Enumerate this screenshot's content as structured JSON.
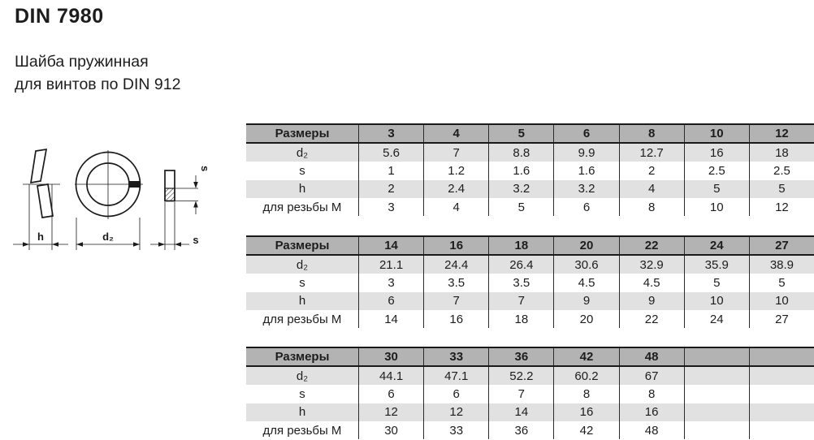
{
  "page": {
    "title": "DIN 7980",
    "subtitle_line1": "Шайба пружинная",
    "subtitle_line2": "для винтов по DIN 912"
  },
  "drawing": {
    "description": "spring lock washer technical views: side view, front view, cross-section",
    "labels": {
      "h": "h",
      "d2": "d₂",
      "s_thickness": "s",
      "s_width": "s"
    }
  },
  "colors": {
    "table_header_bg": "#b3b3b3",
    "table_alt_row_bg": "#e1e1e1",
    "table_plain_row_bg": "#ffffff",
    "line": "#1a1a1a",
    "text": "#1d1d1d"
  },
  "tables": [
    {
      "header": [
        "Размеры",
        "3",
        "4",
        "5",
        "6",
        "8",
        "10",
        "12"
      ],
      "rows": [
        {
          "label": "d₂",
          "values": [
            "5.6",
            "7",
            "8.8",
            "9.9",
            "12.7",
            "16",
            "18"
          ]
        },
        {
          "label": "s",
          "values": [
            "1",
            "1.2",
            "1.6",
            "1.6",
            "2",
            "2.5",
            "2.5"
          ]
        },
        {
          "label": "h",
          "values": [
            "2",
            "2.4",
            "3.2",
            "3.2",
            "4",
            "5",
            "5"
          ]
        },
        {
          "label": "для резьбы М",
          "values": [
            "3",
            "4",
            "5",
            "6",
            "8",
            "10",
            "12"
          ]
        }
      ]
    },
    {
      "header": [
        "Размеры",
        "14",
        "16",
        "18",
        "20",
        "22",
        "24",
        "27"
      ],
      "rows": [
        {
          "label": "d₂",
          "values": [
            "21.1",
            "24.4",
            "26.4",
            "30.6",
            "32.9",
            "35.9",
            "38.9"
          ]
        },
        {
          "label": "s",
          "values": [
            "3",
            "3.5",
            "3.5",
            "4.5",
            "4.5",
            "5",
            "5"
          ]
        },
        {
          "label": "h",
          "values": [
            "6",
            "7",
            "7",
            "9",
            "9",
            "10",
            "10"
          ]
        },
        {
          "label": "для резьбы М",
          "values": [
            "14",
            "16",
            "18",
            "20",
            "22",
            "24",
            "27"
          ]
        }
      ]
    },
    {
      "header": [
        "Размеры",
        "30",
        "33",
        "36",
        "42",
        "48",
        "",
        ""
      ],
      "rows": [
        {
          "label": "d₂",
          "values": [
            "44.1",
            "47.1",
            "52.2",
            "60.2",
            "67",
            "",
            ""
          ]
        },
        {
          "label": "s",
          "values": [
            "6",
            "6",
            "7",
            "8",
            "8",
            "",
            ""
          ]
        },
        {
          "label": "h",
          "values": [
            "12",
            "12",
            "14",
            "16",
            "16",
            "",
            ""
          ]
        },
        {
          "label": "для резьбы М",
          "values": [
            "30",
            "33",
            "36",
            "42",
            "48",
            "",
            ""
          ]
        }
      ]
    }
  ]
}
